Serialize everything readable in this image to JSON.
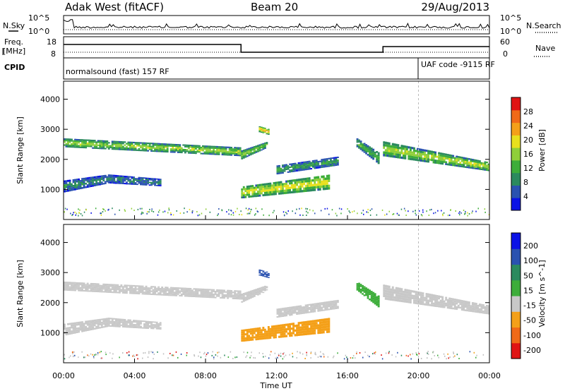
{
  "header": {
    "station": "Adak West (fitACF)",
    "beam": "Beam 20",
    "date": "29/Aug/2013"
  },
  "noise_panel": {
    "left_label": "N.Sky",
    "right_label": "N.Search",
    "tick_top": "10^5",
    "tick_bottom": "10^0"
  },
  "freq_panel": {
    "left_label_1": "Freq.",
    "left_label_2": "[MHz]",
    "right_label": "Nave",
    "left_ticks": [
      "18",
      "8"
    ],
    "right_ticks": [
      "60",
      "0"
    ]
  },
  "cpid_panel": {
    "label": "CPID",
    "segments": [
      {
        "start_h": 0,
        "text": "normalsound (fast) 157 RF"
      },
      {
        "start_h": 20,
        "text": "UAF code -9115 RF"
      }
    ]
  },
  "colors": {
    "power": [
      "#0a12e6",
      "#2a52b0",
      "#2b8a5e",
      "#3dad3a",
      "#8fcf3a",
      "#e8e01e",
      "#f4a019",
      "#f06a18",
      "#e01414"
    ],
    "velocity": [
      "#e01414",
      "#f06a18",
      "#f4a019",
      "#c8c8c8",
      "#3dad3a",
      "#2b8a5e",
      "#2a52b0",
      "#0a12e6"
    ],
    "ground_scatter": "#c0c0c0"
  },
  "chart_data": [
    {
      "type": "heatmap",
      "name": "power",
      "ylabel": "Slant Range [km]",
      "yticks": [
        1000,
        2000,
        3000,
        4000
      ],
      "ylim": [
        0,
        4600
      ],
      "xlim_h": [
        0,
        24
      ],
      "colorbar_label": "Power [dB]",
      "colorbar_ticks": [
        "4",
        "8",
        "12",
        "16",
        "20",
        "24",
        "28"
      ],
      "colorbar_range": [
        0,
        32
      ],
      "echo_bands": [
        {
          "t0": 0.0,
          "t1": 10.0,
          "r0": 2400,
          "r1": 2700,
          "r_end0": 2100,
          "r_end1": 2400,
          "p": 18
        },
        {
          "t0": 0.0,
          "t1": 2.5,
          "r0": 900,
          "r1": 1300,
          "r_end0": 1200,
          "r_end1": 1500,
          "p": 10
        },
        {
          "t0": 2.5,
          "t1": 5.5,
          "r0": 1200,
          "r1": 1500,
          "r_end0": 1100,
          "r_end1": 1350,
          "p": 9
        },
        {
          "t0": 10.0,
          "t1": 15.0,
          "r0": 700,
          "r1": 1100,
          "r_end0": 1000,
          "r_end1": 1500,
          "p": 21
        },
        {
          "t0": 12.0,
          "t1": 15.5,
          "r0": 1500,
          "r1": 1800,
          "r_end0": 1800,
          "r_end1": 2100,
          "p": 12
        },
        {
          "t0": 10.0,
          "t1": 11.5,
          "r0": 2000,
          "r1": 2300,
          "r_end0": 2400,
          "r_end1": 2600,
          "p": 17
        },
        {
          "t0": 11.0,
          "t1": 11.6,
          "r0": 2900,
          "r1": 3100,
          "r_end0": 2800,
          "r_end1": 3000,
          "p": 24
        },
        {
          "t0": 16.5,
          "t1": 17.8,
          "r0": 2400,
          "r1": 2700,
          "r_end0": 1800,
          "r_end1": 2200,
          "p": 14
        },
        {
          "t0": 18.0,
          "t1": 24.0,
          "r0": 2100,
          "r1": 2600,
          "r_end0": 1600,
          "r_end1": 1900,
          "p": 19
        }
      ]
    },
    {
      "type": "heatmap",
      "name": "velocity",
      "xlabel": "Time UT",
      "ylabel": "Slant Range [km]",
      "yticks": [
        1000,
        2000,
        3000,
        4000
      ],
      "ylim": [
        0,
        4600
      ],
      "xlim_h": [
        0,
        24
      ],
      "xticks": [
        "00:00",
        "04:00",
        "08:00",
        "12:00",
        "16:00",
        "20:00",
        "00:00"
      ],
      "colorbar_label": "Velocity [m s^-1]",
      "colorbar_ticks": [
        "-200",
        "-100",
        "-50",
        "-15",
        "15",
        "50",
        "100",
        "200"
      ],
      "echo_bands": [
        {
          "t0": 0.0,
          "t1": 10.0,
          "r0": 2400,
          "r1": 2700,
          "r_end0": 2100,
          "r_end1": 2400,
          "v": 0
        },
        {
          "t0": 0.0,
          "t1": 2.5,
          "r0": 900,
          "r1": 1300,
          "r_end0": 1200,
          "r_end1": 1500,
          "v": 0
        },
        {
          "t0": 2.5,
          "t1": 5.5,
          "r0": 1200,
          "r1": 1500,
          "r_end0": 1100,
          "r_end1": 1350,
          "v": 0
        },
        {
          "t0": 10.0,
          "t1": 15.0,
          "r0": 700,
          "r1": 1100,
          "r_end0": 1000,
          "r_end1": 1500,
          "v": -40
        },
        {
          "t0": 12.0,
          "t1": 15.5,
          "r0": 1500,
          "r1": 1800,
          "r_end0": 1800,
          "r_end1": 2100,
          "v": 0
        },
        {
          "t0": 10.0,
          "t1": 11.5,
          "r0": 2000,
          "r1": 2300,
          "r_end0": 2400,
          "r_end1": 2600,
          "v": 0
        },
        {
          "t0": 11.0,
          "t1": 11.6,
          "r0": 2900,
          "r1": 3100,
          "r_end0": 2800,
          "r_end1": 3000,
          "v": 180
        },
        {
          "t0": 16.5,
          "t1": 17.8,
          "r0": 2400,
          "r1": 2700,
          "r_end0": 1800,
          "r_end1": 2200,
          "v": 30
        },
        {
          "t0": 18.0,
          "t1": 24.0,
          "r0": 2100,
          "r1": 2600,
          "r_end0": 1600,
          "r_end1": 1900,
          "v": 0
        }
      ]
    }
  ]
}
